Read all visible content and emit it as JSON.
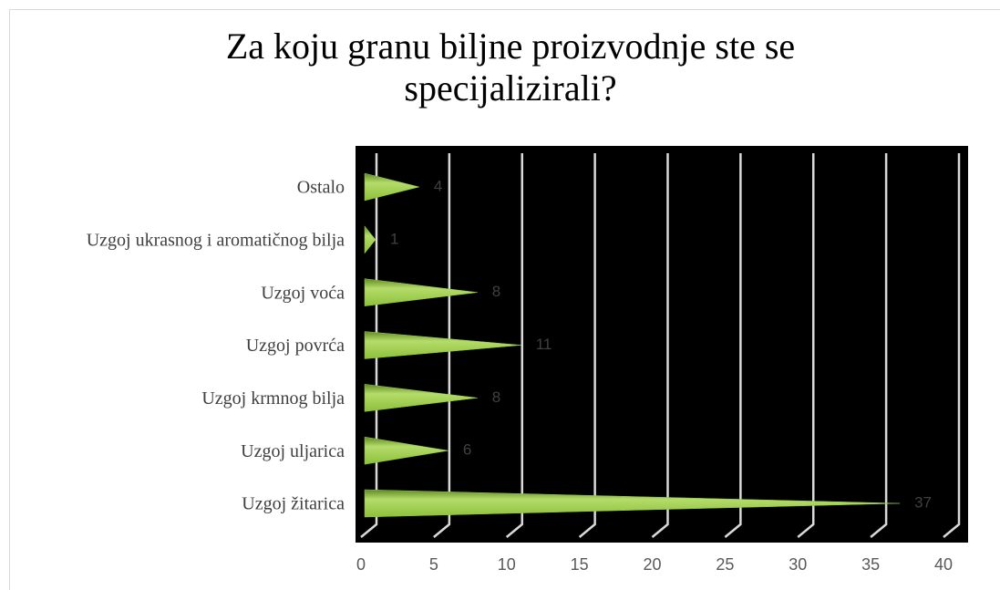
{
  "chart_data": {
    "type": "bar",
    "orientation": "horizontal",
    "title": "Za koju granu biljne proizvodnje ste se specijalizirali?",
    "categories": [
      "Ostalo",
      "Uzgoj ukrasnog i aromatičnog bilja",
      "Uzgoj voća",
      "Uzgoj povrća",
      "Uzgoj krmnog bilja",
      "Uzgoj uljarica",
      "Uzgoj žitarica"
    ],
    "values": [
      4,
      1,
      8,
      11,
      8,
      6,
      37
    ],
    "color": "#92c83e",
    "xlim": [
      0,
      40
    ],
    "xticks": [
      0,
      5,
      10,
      15,
      20,
      25,
      30,
      35,
      40
    ],
    "grid": true
  }
}
